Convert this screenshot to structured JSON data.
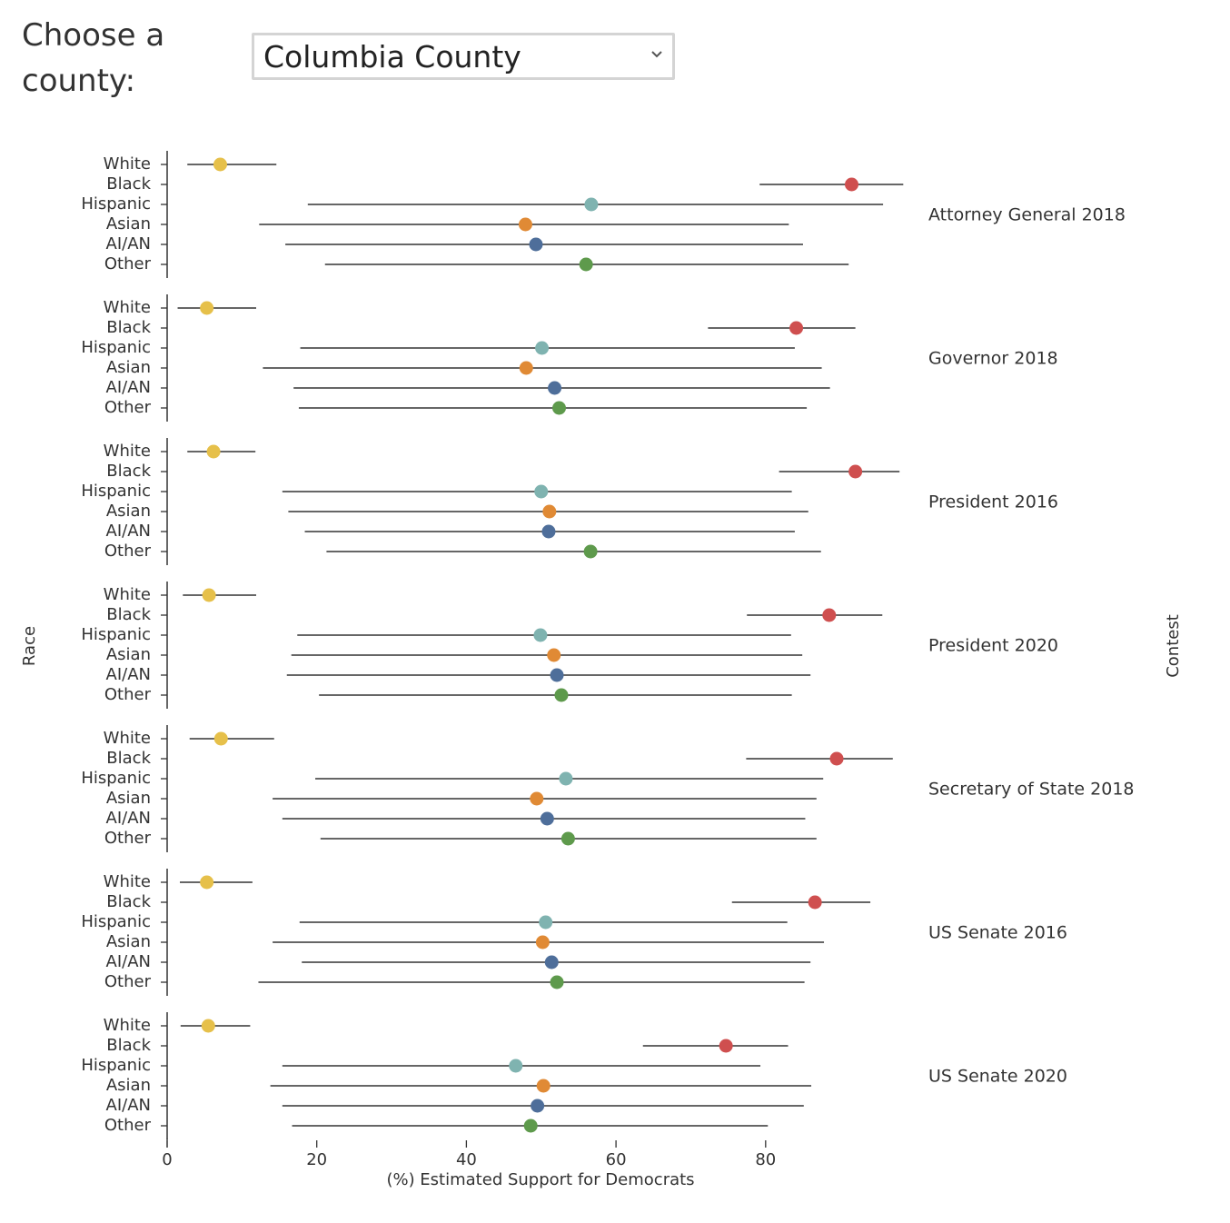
{
  "control": {
    "label": "Choose a county:",
    "selected": "Columbia County",
    "chevron_icon": "chevron-down-icon"
  },
  "chart_data": {
    "type": "scatter",
    "subtype": "dot-with-error-bars (faceted)",
    "xlabel": "(%) Estimated Support for Democrats",
    "ylabel": "Race",
    "facet_label": "Contest",
    "xticks": [
      0,
      20,
      40,
      60,
      80
    ],
    "xlim": [
      0,
      100
    ],
    "races": [
      "White",
      "Black",
      "Hispanic",
      "Asian",
      "AI/AN",
      "Other"
    ],
    "colors": {
      "White": "#e6c04a",
      "Black": "#cf4f4f",
      "Hispanic": "#7fb3b0",
      "Asian": "#e08a35",
      "AI/AN": "#4e6e9a",
      "Other": "#5e9a4c"
    },
    "contests": [
      {
        "name": "Attorney General 2018",
        "points": [
          {
            "race": "White",
            "est": 7.1,
            "low": 2.7,
            "high": 14.6
          },
          {
            "race": "Black",
            "est": 91.5,
            "low": 79.2,
            "high": 98.4
          },
          {
            "race": "Hispanic",
            "est": 56.7,
            "low": 18.8,
            "high": 95.7
          },
          {
            "race": "Asian",
            "est": 47.9,
            "low": 12.3,
            "high": 83.1
          },
          {
            "race": "AI/AN",
            "est": 49.3,
            "low": 15.8,
            "high": 85.0
          },
          {
            "race": "Other",
            "est": 56.0,
            "low": 21.1,
            "high": 91.1
          }
        ]
      },
      {
        "name": "Governor 2018",
        "points": [
          {
            "race": "White",
            "est": 5.3,
            "low": 1.4,
            "high": 11.9
          },
          {
            "race": "Black",
            "est": 84.1,
            "low": 72.3,
            "high": 92.0
          },
          {
            "race": "Hispanic",
            "est": 50.1,
            "low": 17.8,
            "high": 83.9
          },
          {
            "race": "Asian",
            "est": 48.0,
            "low": 12.8,
            "high": 87.5
          },
          {
            "race": "AI/AN",
            "est": 51.8,
            "low": 16.9,
            "high": 88.6
          },
          {
            "race": "Other",
            "est": 52.4,
            "low": 17.6,
            "high": 85.5
          }
        ]
      },
      {
        "name": "President 2016",
        "points": [
          {
            "race": "White",
            "est": 6.2,
            "low": 2.7,
            "high": 11.8
          },
          {
            "race": "Black",
            "est": 92.0,
            "low": 81.8,
            "high": 97.9
          },
          {
            "race": "Hispanic",
            "est": 50.0,
            "low": 15.4,
            "high": 83.5
          },
          {
            "race": "Asian",
            "est": 51.1,
            "low": 16.2,
            "high": 85.7
          },
          {
            "race": "AI/AN",
            "est": 51.0,
            "low": 18.4,
            "high": 83.9
          },
          {
            "race": "Other",
            "est": 56.6,
            "low": 21.3,
            "high": 87.4
          }
        ]
      },
      {
        "name": "President 2020",
        "points": [
          {
            "race": "White",
            "est": 5.6,
            "low": 2.1,
            "high": 11.9
          },
          {
            "race": "Black",
            "est": 88.5,
            "low": 77.5,
            "high": 95.6
          },
          {
            "race": "Hispanic",
            "est": 49.9,
            "low": 17.4,
            "high": 83.4
          },
          {
            "race": "Asian",
            "est": 51.7,
            "low": 16.6,
            "high": 84.9
          },
          {
            "race": "AI/AN",
            "est": 52.1,
            "low": 16.0,
            "high": 86.0
          },
          {
            "race": "Other",
            "est": 52.7,
            "low": 20.3,
            "high": 83.5
          }
        ]
      },
      {
        "name": "Secretary of State 2018",
        "points": [
          {
            "race": "White",
            "est": 7.2,
            "low": 3.0,
            "high": 14.3
          },
          {
            "race": "Black",
            "est": 89.5,
            "low": 77.4,
            "high": 97.0
          },
          {
            "race": "Hispanic",
            "est": 53.3,
            "low": 19.8,
            "high": 87.7
          },
          {
            "race": "Asian",
            "est": 49.4,
            "low": 14.1,
            "high": 86.8
          },
          {
            "race": "AI/AN",
            "est": 50.8,
            "low": 15.4,
            "high": 85.3
          },
          {
            "race": "Other",
            "est": 53.6,
            "low": 20.5,
            "high": 86.8
          }
        ]
      },
      {
        "name": "US Senate 2016",
        "points": [
          {
            "race": "White",
            "est": 5.3,
            "low": 1.7,
            "high": 11.4
          },
          {
            "race": "Black",
            "est": 86.6,
            "low": 75.5,
            "high": 94.0
          },
          {
            "race": "Hispanic",
            "est": 50.6,
            "low": 17.7,
            "high": 82.9
          },
          {
            "race": "Asian",
            "est": 50.2,
            "low": 14.1,
            "high": 87.8
          },
          {
            "race": "AI/AN",
            "est": 51.4,
            "low": 18.0,
            "high": 86.0
          },
          {
            "race": "Other",
            "est": 52.1,
            "low": 12.2,
            "high": 85.2
          }
        ]
      },
      {
        "name": "US Senate 2020",
        "points": [
          {
            "race": "White",
            "est": 5.5,
            "low": 1.8,
            "high": 11.1
          },
          {
            "race": "Black",
            "est": 74.7,
            "low": 63.6,
            "high": 83.0
          },
          {
            "race": "Hispanic",
            "est": 46.6,
            "low": 15.4,
            "high": 79.3
          },
          {
            "race": "Asian",
            "est": 50.3,
            "low": 13.8,
            "high": 86.1
          },
          {
            "race": "AI/AN",
            "est": 49.5,
            "low": 15.4,
            "high": 85.1
          },
          {
            "race": "Other",
            "est": 48.6,
            "low": 16.7,
            "high": 80.3
          }
        ]
      }
    ]
  }
}
